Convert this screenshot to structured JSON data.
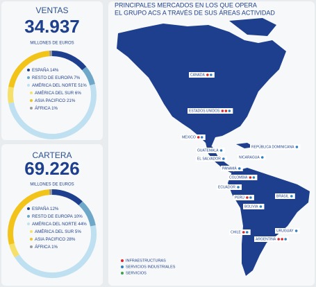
{
  "sales": {
    "title": "VENTAS",
    "value": "34.937",
    "unit": "MILLONES DE EUROS",
    "items": [
      {
        "name": "ESPAÑA",
        "value": 14,
        "value_label": "14%",
        "color": "#1d3f8d"
      },
      {
        "name": "RESTO DE EUROPA",
        "value": 7,
        "value_label": "7%",
        "color": "#6fa7c9"
      },
      {
        "name": "AMÉRICA DEL NORTE",
        "value": 51,
        "value_label": "51%",
        "color": "#bfe0f1"
      },
      {
        "name": "AMÉRICA DEL SUR",
        "value": 6,
        "value_label": "6%",
        "color": "#f5e06a"
      },
      {
        "name": "ASIA PACIFICO",
        "value": 21,
        "value_label": "21%",
        "color": "#f2c318"
      },
      {
        "name": "ÁFRICA",
        "value": 1,
        "value_label": "1%",
        "color": "#9a9a9a"
      }
    ]
  },
  "backlog": {
    "title": "CARTERA",
    "value": "69.226",
    "unit": "MILLONES DE EUROS",
    "items": [
      {
        "name": "ESPAÑA",
        "value": 12,
        "value_label": "12%",
        "color": "#1d3f8d"
      },
      {
        "name": "RESTO DE EUROPA",
        "value": 10,
        "value_label": "10%",
        "color": "#6fa7c9"
      },
      {
        "name": "AMÉRICA DEL NORTE",
        "value": 44,
        "value_label": "44%",
        "color": "#bfe0f1"
      },
      {
        "name": "AMÉRICA DEL SUR",
        "value": 5,
        "value_label": "5%",
        "color": "#f5e06a"
      },
      {
        "name": "ASIA PACIFICO",
        "value": 28,
        "value_label": "28%",
        "color": "#f2c318"
      },
      {
        "name": "ÁFRICA",
        "value": 1,
        "value_label": "1%",
        "color": "#9a9a9a"
      }
    ]
  },
  "map": {
    "title": [
      "PRINCIPALES MERCADOS EN LOS QUE OPERA",
      "EL GRUPO ACS A TRAVÉS DE SUS ÁREAS ACTIVIDAD"
    ],
    "countries": [
      "CANADA",
      "ESTADOS UNIDOS",
      "MÉXICO",
      "GUATEMALA",
      "EL SALVADOR",
      "REPÚBLICA DOMINICANA",
      "NICARAGUA",
      "PANAMÁ",
      "COLOMBIA",
      "ECUADOR",
      "PERÚ",
      "BRASIL",
      "BOLIVIA",
      "URUGUAY",
      "CHILE",
      "ARGENTINA"
    ],
    "legend": [
      "INFRAESTRUCTURAS",
      "SERVICIOS INDUSTRIALES",
      "SERVICIOS"
    ]
  }
}
